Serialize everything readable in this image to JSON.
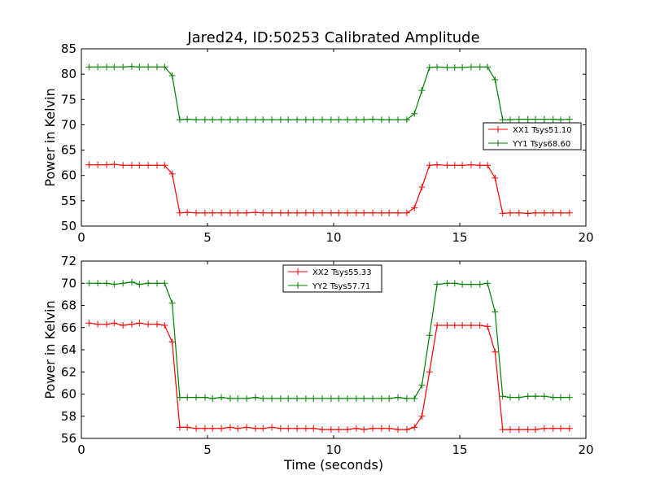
{
  "figure": {
    "title": "Jared24, ID:50253 Calibrated Amplitude",
    "xlabel": "Time (seconds)"
  },
  "chart_data": [
    {
      "type": "line",
      "title": "Jared24, ID:50253 Calibrated Amplitude",
      "xlabel": "",
      "ylabel": "Power in Kelvin",
      "xlim": [
        0,
        20
      ],
      "ylim": [
        50,
        85
      ],
      "xticks": [
        0,
        5,
        10,
        15,
        20
      ],
      "yticks": [
        50,
        55,
        60,
        65,
        70,
        75,
        80,
        85
      ],
      "grid": false,
      "legend_position": "center-right",
      "x": [
        0.3,
        0.65,
        1.0,
        1.3,
        1.65,
        2.0,
        2.3,
        2.65,
        3.0,
        3.3,
        3.6,
        3.9,
        4.2,
        4.55,
        4.9,
        5.2,
        5.55,
        5.9,
        6.2,
        6.55,
        6.9,
        7.2,
        7.55,
        7.9,
        8.2,
        8.55,
        8.9,
        9.2,
        9.55,
        9.9,
        10.2,
        10.55,
        10.9,
        11.2,
        11.55,
        11.9,
        12.2,
        12.55,
        12.9,
        13.2,
        13.5,
        13.8,
        14.1,
        14.5,
        14.8,
        15.1,
        15.45,
        15.8,
        16.1,
        16.4,
        16.7,
        17.0,
        17.35,
        17.7,
        18.0,
        18.35,
        18.7,
        19.0,
        19.35
      ],
      "series": [
        {
          "name": "XX1 Tsys51.10",
          "color": "#ff0000",
          "values": [
            62.1,
            62.1,
            62.1,
            62.2,
            62.0,
            62.0,
            62.0,
            62.0,
            62.0,
            62.0,
            60.3,
            52.6,
            52.7,
            52.6,
            52.6,
            52.6,
            52.6,
            52.6,
            52.6,
            52.6,
            52.7,
            52.6,
            52.6,
            52.6,
            52.6,
            52.6,
            52.6,
            52.6,
            52.6,
            52.6,
            52.6,
            52.6,
            52.6,
            52.6,
            52.6,
            52.6,
            52.6,
            52.6,
            52.6,
            53.6,
            57.7,
            62.0,
            62.1,
            62.0,
            62.0,
            62.0,
            62.1,
            62.0,
            62.0,
            59.5,
            52.5,
            52.6,
            52.6,
            52.5,
            52.6,
            52.6,
            52.6,
            52.6,
            52.6
          ]
        },
        {
          "name": "YY1 Tsys68.60",
          "color": "#008000",
          "values": [
            81.4,
            81.4,
            81.4,
            81.4,
            81.4,
            81.5,
            81.4,
            81.4,
            81.4,
            81.4,
            79.7,
            71.0,
            71.1,
            71.0,
            71.0,
            71.0,
            71.0,
            71.0,
            71.0,
            71.0,
            71.0,
            71.0,
            71.0,
            71.0,
            71.0,
            71.0,
            71.0,
            71.0,
            71.0,
            71.0,
            71.0,
            71.0,
            71.0,
            71.0,
            71.1,
            71.0,
            71.0,
            71.0,
            71.0,
            72.2,
            76.8,
            81.3,
            81.4,
            81.3,
            81.3,
            81.3,
            81.4,
            81.4,
            81.4,
            78.9,
            71.0,
            71.0,
            71.1,
            71.1,
            71.1,
            71.1,
            71.1,
            71.0,
            71.1
          ]
        }
      ]
    },
    {
      "type": "line",
      "title": "",
      "xlabel": "Time (seconds)",
      "ylabel": "Power in Kelvin",
      "xlim": [
        0,
        20
      ],
      "ylim": [
        56,
        72
      ],
      "xticks": [
        0,
        5,
        10,
        15,
        20
      ],
      "yticks": [
        56,
        58,
        60,
        62,
        64,
        66,
        68,
        70,
        72
      ],
      "grid": false,
      "legend_position": "upper-center",
      "x": [
        0.3,
        0.65,
        1.0,
        1.3,
        1.65,
        2.0,
        2.3,
        2.65,
        3.0,
        3.3,
        3.6,
        3.9,
        4.2,
        4.55,
        4.9,
        5.2,
        5.55,
        5.9,
        6.2,
        6.55,
        6.9,
        7.2,
        7.55,
        7.9,
        8.2,
        8.55,
        8.9,
        9.2,
        9.55,
        9.9,
        10.2,
        10.55,
        10.9,
        11.2,
        11.55,
        11.9,
        12.2,
        12.55,
        12.9,
        13.2,
        13.5,
        13.8,
        14.1,
        14.5,
        14.8,
        15.1,
        15.45,
        15.8,
        16.1,
        16.4,
        16.7,
        17.0,
        17.35,
        17.7,
        18.0,
        18.35,
        18.7,
        19.0,
        19.35
      ],
      "series": [
        {
          "name": "XX2 Tsys55.33",
          "color": "#ff0000",
          "values": [
            66.4,
            66.3,
            66.3,
            66.4,
            66.2,
            66.3,
            66.4,
            66.3,
            66.3,
            66.2,
            64.7,
            57.0,
            57.0,
            56.9,
            56.9,
            56.9,
            56.9,
            57.0,
            56.9,
            57.0,
            56.9,
            56.9,
            57.0,
            56.9,
            56.9,
            56.9,
            56.9,
            56.9,
            56.8,
            56.8,
            56.8,
            56.8,
            56.9,
            56.8,
            56.9,
            56.9,
            56.9,
            56.8,
            56.8,
            57.0,
            58.0,
            62.0,
            66.2,
            66.2,
            66.2,
            66.2,
            66.2,
            66.2,
            66.1,
            63.8,
            56.8,
            56.8,
            56.8,
            56.8,
            56.8,
            56.9,
            56.9,
            56.9,
            56.9
          ]
        },
        {
          "name": "YY2 Tsys57.71",
          "color": "#008000",
          "values": [
            70.0,
            70.0,
            70.0,
            69.9,
            70.0,
            70.1,
            69.9,
            70.0,
            70.0,
            70.0,
            68.2,
            59.7,
            59.7,
            59.7,
            59.7,
            59.6,
            59.7,
            59.6,
            59.6,
            59.6,
            59.7,
            59.6,
            59.6,
            59.6,
            59.6,
            59.6,
            59.6,
            59.6,
            59.6,
            59.6,
            59.6,
            59.6,
            59.6,
            59.6,
            59.6,
            59.6,
            59.6,
            59.7,
            59.6,
            59.6,
            60.8,
            65.3,
            69.9,
            70.0,
            70.0,
            69.9,
            69.9,
            69.9,
            70.0,
            67.4,
            59.8,
            59.7,
            59.7,
            59.8,
            59.8,
            59.8,
            59.7,
            59.7,
            59.7
          ]
        }
      ]
    }
  ]
}
